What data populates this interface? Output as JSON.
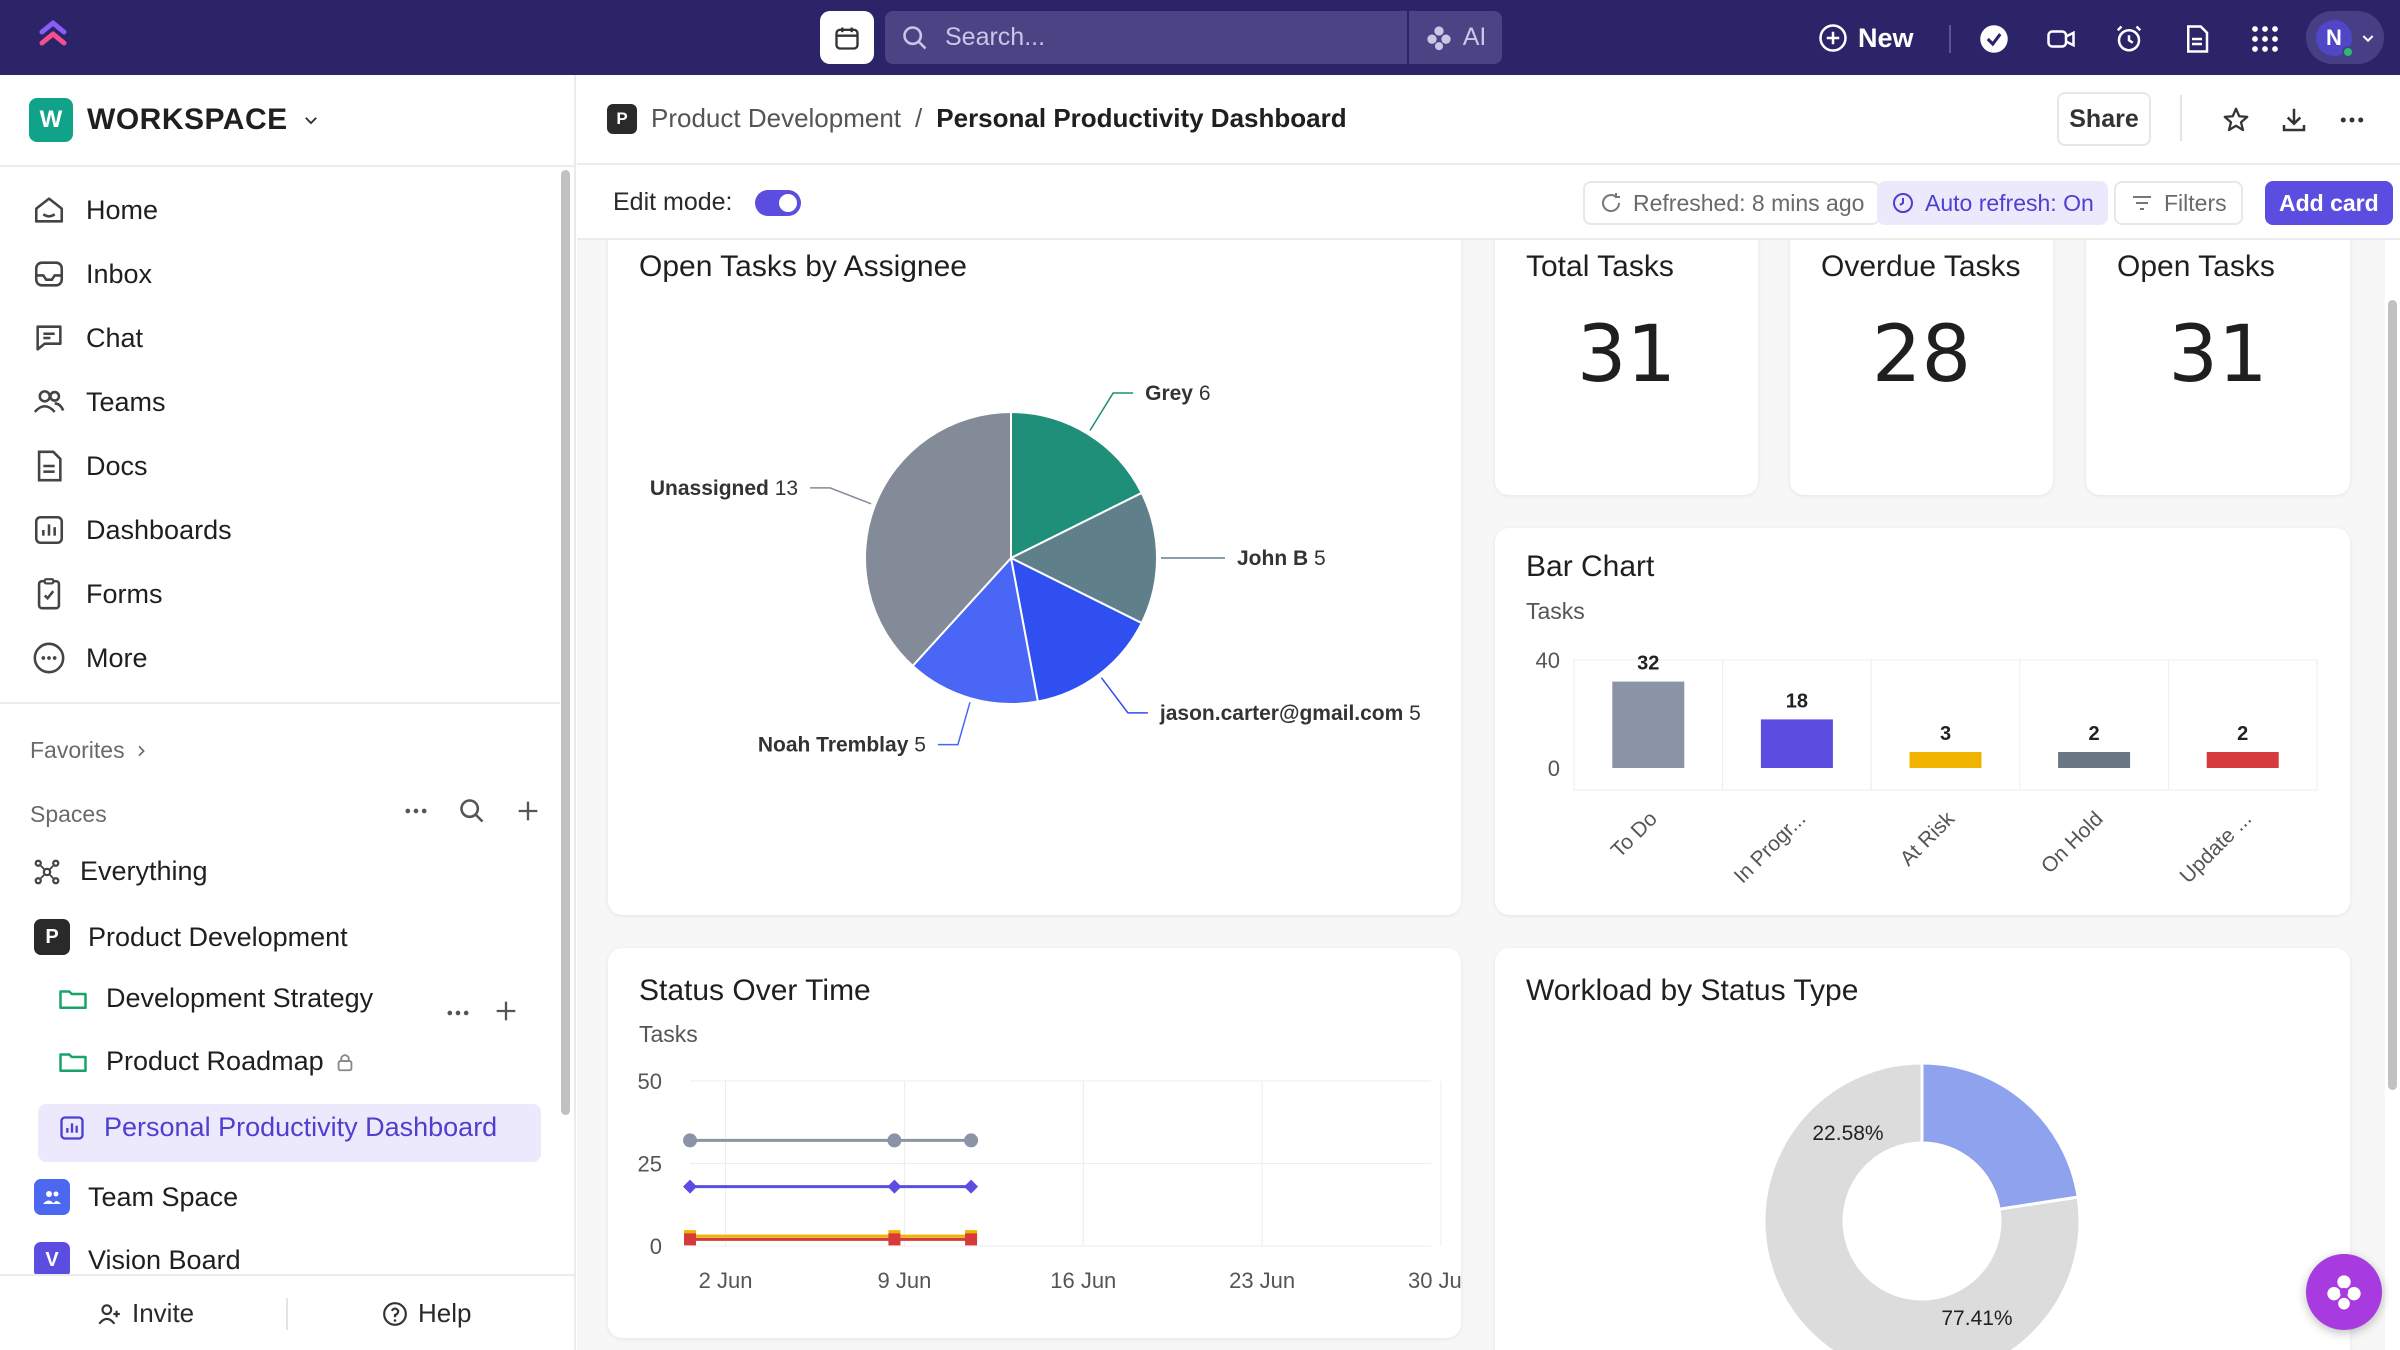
{
  "topbar": {
    "search_placeholder": "Search...",
    "ai_label": "AI",
    "new_label": "New",
    "avatar_initial": "N"
  },
  "sidebar": {
    "workspace_initial": "W",
    "workspace_name": "WORKSPACE",
    "nav": [
      {
        "label": "Home",
        "icon": "home-icon"
      },
      {
        "label": "Inbox",
        "icon": "inbox-icon"
      },
      {
        "label": "Chat",
        "icon": "chat-icon"
      },
      {
        "label": "Teams",
        "icon": "teams-icon"
      },
      {
        "label": "Docs",
        "icon": "docs-icon"
      },
      {
        "label": "Dashboards",
        "icon": "dashboards-icon"
      },
      {
        "label": "Forms",
        "icon": "forms-icon"
      },
      {
        "label": "More",
        "icon": "more-icon"
      }
    ],
    "favorites_label": "Favorites",
    "spaces_label": "Spaces",
    "everything_label": "Everything",
    "space_product": {
      "initial": "P",
      "label": "Product Development"
    },
    "folder_strategy": "Development Strategy",
    "folder_roadmap": "Product Roadmap",
    "active_dashboard": "Personal Productivity Dashboard",
    "team_space": "Team Space",
    "vision_board": {
      "initial": "V",
      "label": "Vision Board"
    },
    "invite_label": "Invite",
    "help_label": "Help"
  },
  "header": {
    "crumb_initial": "P",
    "crumb_parent": "Product Development",
    "crumb_sep": "/",
    "crumb_current": "Personal Productivity Dashboard",
    "share_label": "Share"
  },
  "toolbar": {
    "edit_mode_label": "Edit mode:",
    "edit_mode_on": true,
    "refreshed_label": "Refreshed: 8 mins ago",
    "auto_refresh_label": "Auto refresh: On",
    "filters_label": "Filters",
    "add_card_label": "Add card"
  },
  "cards": {
    "pie_title": "Open Tasks by Assignee",
    "total_title": "Total Tasks",
    "total_value": "31",
    "overdue_title": "Overdue Tasks",
    "overdue_value": "28",
    "open_title": "Open Tasks",
    "open_value": "31",
    "bar_title": "Bar Chart",
    "bar_sub": "Tasks",
    "line_title": "Status Over Time",
    "line_sub": "Tasks",
    "donut_title": "Workload by Status Type"
  },
  "colors": {
    "brand": "#2b2468",
    "accent": "#5b4de0"
  },
  "chart_data": [
    {
      "type": "pie",
      "title": "Open Tasks by Assignee",
      "slices": [
        {
          "label": "Grey",
          "value": 6,
          "color": "#1f8f7a"
        },
        {
          "label": "John B",
          "value": 5,
          "color": "#5f7f8a"
        },
        {
          "label": "jason.carter@gmail.com",
          "value": 5,
          "color": "#2f4ff0"
        },
        {
          "label": "Noah Tremblay",
          "value": 5,
          "color": "#4a66f5"
        },
        {
          "label": "Unassigned",
          "value": 13,
          "color": "#848b98"
        }
      ]
    },
    {
      "type": "bar",
      "title": "Bar Chart",
      "ylabel": "Tasks",
      "categories": [
        "To Do",
        "In Progr...",
        "At Risk",
        "On Hold",
        "Update ..."
      ],
      "values": [
        32,
        18,
        3,
        2,
        2
      ],
      "colors": [
        "#8a94a6",
        "#5b4de0",
        "#f0b400",
        "#6b7685",
        "#d63a3a"
      ],
      "yticks": [
        0,
        40
      ]
    },
    {
      "type": "line",
      "title": "Status Over Time",
      "ylabel": "Tasks",
      "x": [
        "2 Jun",
        "9 Jun",
        "16 Jun",
        "23 Jun",
        "30 Jun"
      ],
      "yticks": [
        0,
        25,
        50
      ],
      "series": [
        {
          "color": "#8a94a6",
          "marker": "circle",
          "points": [
            [
              "1 Jun",
              32
            ],
            [
              "9 Jun",
              32
            ],
            [
              "12 Jun",
              32
            ]
          ]
        },
        {
          "color": "#5b4de0",
          "marker": "diamond",
          "points": [
            [
              "1 Jun",
              18
            ],
            [
              "9 Jun",
              18
            ],
            [
              "12 Jun",
              18
            ]
          ]
        },
        {
          "color": "#f0b400",
          "marker": "square",
          "points": [
            [
              "1 Jun",
              3
            ],
            [
              "9 Jun",
              3
            ],
            [
              "12 Jun",
              3
            ]
          ]
        },
        {
          "color": "#d63a3a",
          "marker": "square",
          "points": [
            [
              "1 Jun",
              2
            ],
            [
              "9 Jun",
              2
            ],
            [
              "12 Jun",
              2
            ]
          ]
        }
      ]
    },
    {
      "type": "pie",
      "title": "Workload by Status Type",
      "donut": true,
      "slices": [
        {
          "label": "22.58%",
          "value": 22.58,
          "color": "#8ea2ee"
        },
        {
          "label": "77.41%",
          "value": 77.41,
          "color": "#dcdcdc"
        }
      ]
    }
  ]
}
